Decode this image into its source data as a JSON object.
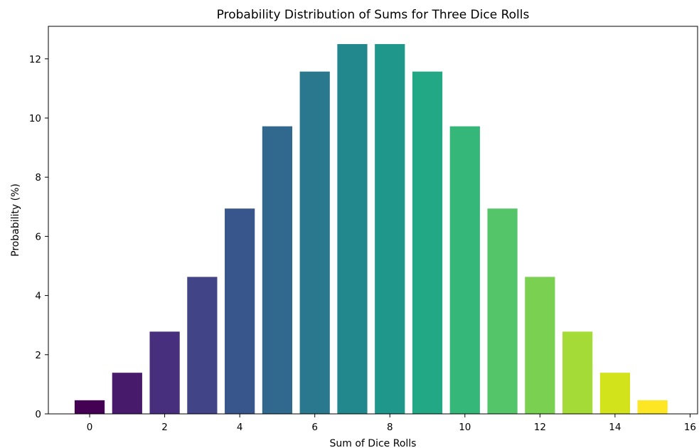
{
  "chart_data": {
    "type": "bar",
    "title": "Probability Distribution of Sums for Three Dice Rolls",
    "xlabel": "Sum of Dice Rolls",
    "ylabel": "Probability (%)",
    "x": [
      0,
      1,
      2,
      3,
      4,
      5,
      6,
      7,
      8,
      9,
      10,
      11,
      12,
      13,
      14,
      15
    ],
    "values": [
      0.46,
      1.39,
      2.78,
      4.63,
      6.94,
      9.72,
      11.57,
      12.5,
      12.5,
      11.57,
      9.72,
      6.94,
      4.63,
      2.78,
      1.39,
      0.46
    ],
    "bar_colors": [
      "#440154",
      "#481a6c",
      "#472f7d",
      "#414487",
      "#39568c",
      "#31688e",
      "#2a788e",
      "#23888e",
      "#1f988b",
      "#22a884",
      "#35b779",
      "#54c568",
      "#7ad151",
      "#a5db36",
      "#d2e21b",
      "#fde725"
    ],
    "xlim": [
      -1.1,
      16.2
    ],
    "ylim": [
      0,
      13.1
    ],
    "xticks": [
      "0",
      "2",
      "4",
      "6",
      "8",
      "10",
      "12",
      "14",
      "16"
    ],
    "yticks": [
      "0",
      "2",
      "4",
      "6",
      "8",
      "10",
      "12"
    ],
    "grid": false,
    "legend": "none"
  }
}
